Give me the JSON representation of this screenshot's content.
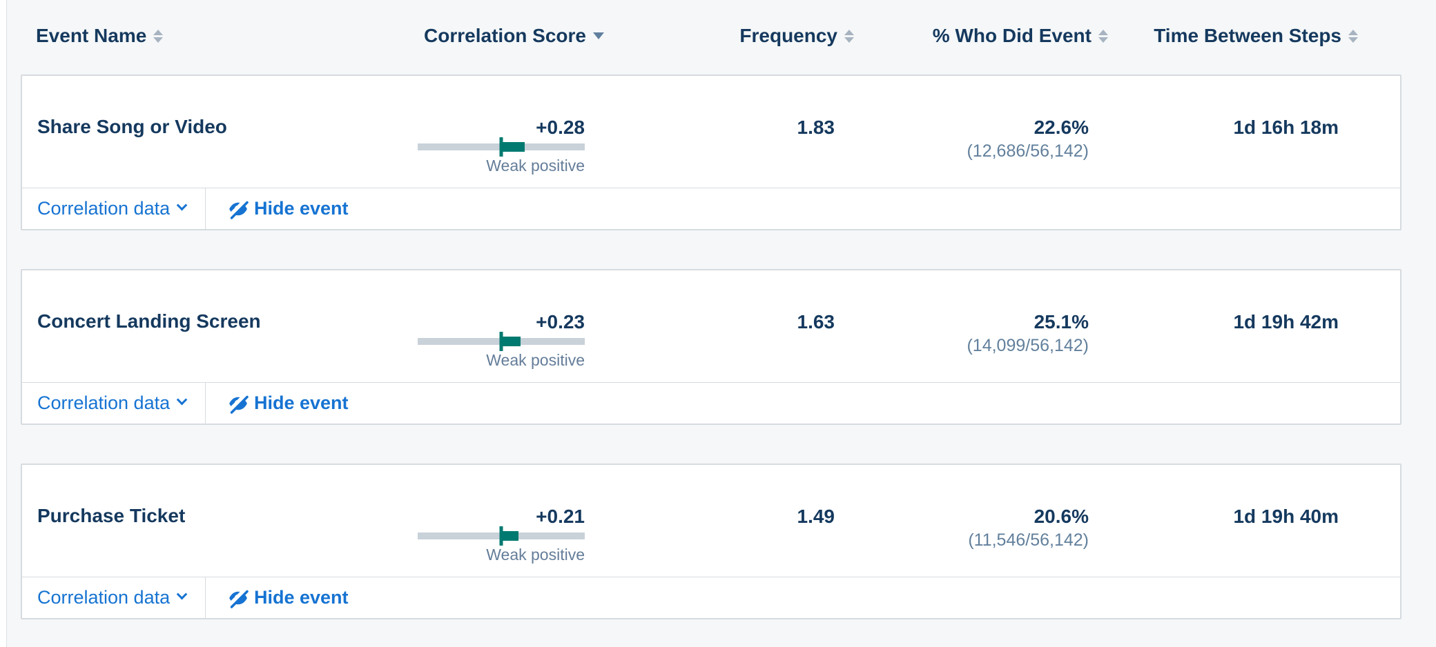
{
  "ui": {
    "row_actions": {
      "correlation_data": "Correlation data",
      "hide_event": "Hide event"
    }
  },
  "table": {
    "columns": [
      {
        "label": "Event Name",
        "sort": "none"
      },
      {
        "label": "Correlation Score",
        "sort": "desc"
      },
      {
        "label": "Frequency",
        "sort": "none"
      },
      {
        "label": "% Who Did Event",
        "sort": "none"
      },
      {
        "label": "Time Between Steps",
        "sort": "none"
      }
    ],
    "rows": [
      {
        "name": "Share Song or Video",
        "correlation_value": "+0.28",
        "correlation_score": 0.28,
        "correlation_strength": "Weak positive",
        "frequency": "1.83",
        "pct_who_did": "22.6%",
        "pct_detail": "(12,686/56,142)",
        "time_between": "1d 16h 18m"
      },
      {
        "name": "Concert Landing Screen",
        "correlation_value": "+0.23",
        "correlation_score": 0.23,
        "correlation_strength": "Weak positive",
        "frequency": "1.63",
        "pct_who_did": "25.1%",
        "pct_detail": "(14,099/56,142)",
        "time_between": "1d 19h 42m"
      },
      {
        "name": "Purchase Ticket",
        "correlation_value": "+0.21",
        "correlation_score": 0.21,
        "correlation_strength": "Weak positive",
        "frequency": "1.49",
        "pct_who_did": "20.6%",
        "pct_detail": "(11,546/56,142)",
        "time_between": "1d 19h 40m"
      }
    ]
  },
  "colors": {
    "accent_blue": "#1673d2",
    "teal": "#007a70",
    "navy": "#15395e",
    "secondary_text": "#647d99",
    "bar_track": "#c9d1d9",
    "page_background": "#f5f7f8",
    "card_border": "#d6dbe0"
  }
}
